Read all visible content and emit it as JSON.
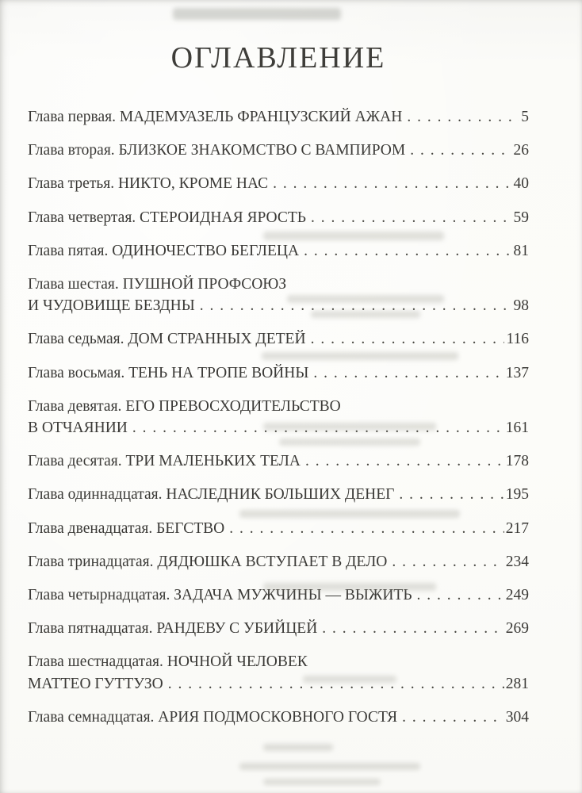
{
  "page": {
    "title": "ОГЛАВЛЕНИЕ"
  },
  "toc": {
    "entries": [
      {
        "lines": [
          "Глава первая. МАДЕМУАЗЕЛЬ ФРАНЦУЗСКИЙ АЖАН"
        ],
        "page": "5"
      },
      {
        "lines": [
          "Глава вторая. БЛИЗКОЕ ЗНАКОМСТВО С ВАМПИРОМ"
        ],
        "page": "26"
      },
      {
        "lines": [
          "Глава третья. НИКТО, КРОМЕ НАС"
        ],
        "page": "40"
      },
      {
        "lines": [
          "Глава четвертая. СТЕРОИДНАЯ ЯРОСТЬ"
        ],
        "page": "59"
      },
      {
        "lines": [
          "Глава пятая. ОДИНОЧЕСТВО БЕГЛЕЦА"
        ],
        "page": "81"
      },
      {
        "lines": [
          "Глава шестая. ПУШНОЙ ПРОФСОЮЗ",
          "И ЧУДОВИЩЕ БЕЗДНЫ"
        ],
        "page": "98"
      },
      {
        "lines": [
          "Глава седьмая. ДОМ СТРАННЫХ ДЕТЕЙ"
        ],
        "page": "116"
      },
      {
        "lines": [
          "Глава восьмая. ТЕНЬ НА ТРОПЕ ВОЙНЫ"
        ],
        "page": "137"
      },
      {
        "lines": [
          "Глава девятая. ЕГО ПРЕВОСХОДИТЕЛЬСТВО",
          "В ОТЧАЯНИИ"
        ],
        "page": "161"
      },
      {
        "lines": [
          "Глава десятая. ТРИ МАЛЕНЬКИХ ТЕЛА"
        ],
        "page": "178"
      },
      {
        "lines": [
          "Глава одиннадцатая. НАСЛЕДНИК БОЛЬШИХ ДЕНЕГ"
        ],
        "page": "195"
      },
      {
        "lines": [
          "Глава двенадцатая. БЕГСТВО"
        ],
        "page": "217"
      },
      {
        "lines": [
          "Глава тринадцатая. ДЯДЮШКА ВСТУПАЕТ В ДЕЛО"
        ],
        "page": "234"
      },
      {
        "lines": [
          "Глава четырнадцатая. ЗАДАЧА МУЖЧИНЫ — ВЫЖИТЬ"
        ],
        "page": "249"
      },
      {
        "lines": [
          "Глава пятнадцатая. РАНДЕВУ С УБИЙЦЕЙ"
        ],
        "page": "269"
      },
      {
        "lines": [
          "Глава шестнадцатая. НОЧНОЙ ЧЕЛОВЕК",
          "МАТТЕО ГУТТУЗО"
        ],
        "page": "281"
      },
      {
        "lines": [
          "Глава семнадцатая. АРИЯ ПОДМОСКОВНОГО ГОСТЯ"
        ],
        "page": "304"
      }
    ]
  },
  "colors": {
    "text": "#3b3a37",
    "paper": "#fbfbf8"
  }
}
